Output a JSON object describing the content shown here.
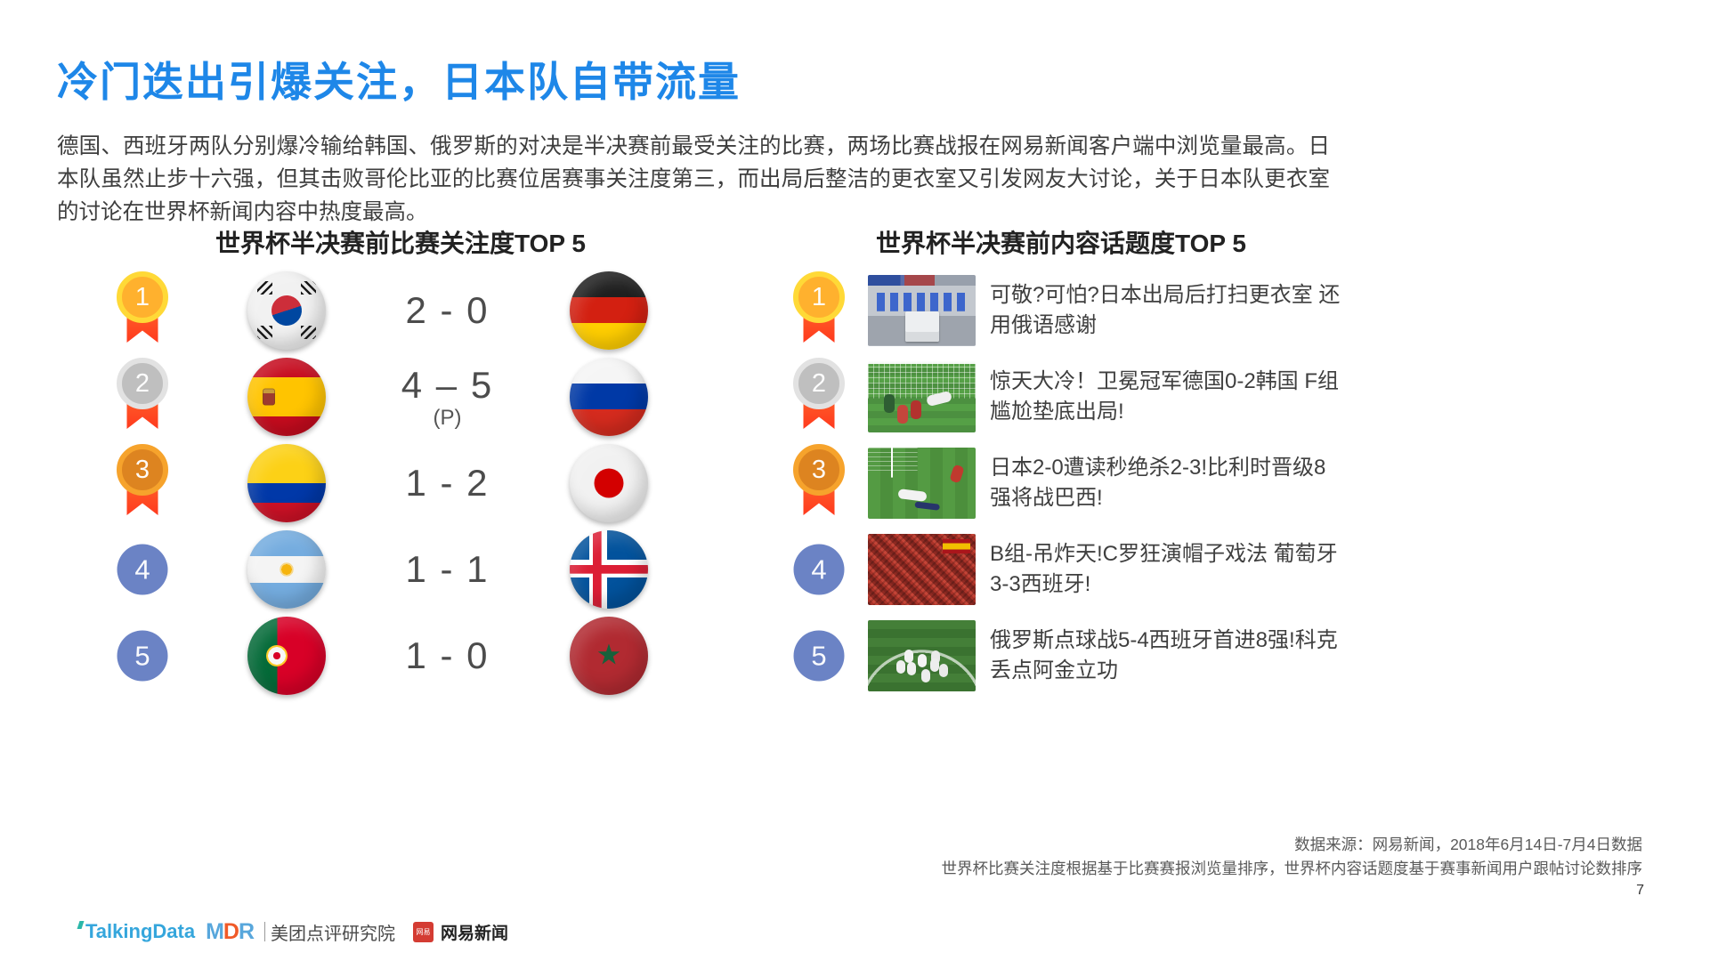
{
  "page": {
    "title": "冷门迭出引爆关注，日本队自带流量",
    "paragraph": "德国、西班牙两队分别爆冷输给韩国、俄罗斯的对决是半决赛前最受关注的比赛，两场比赛战报在网易新闻客户端中浏览量最高。日本队虽然止步十六强，但其击败哥伦比亚的比赛位居赛事关注度第三，而出局后整洁的更衣室又引发网友大讨论，关于日本队更衣室的讨论在世界杯新闻内容中热度最高。",
    "page_number": "7"
  },
  "left_panel": {
    "heading": "世界杯半决赛前比赛关注度TOP 5",
    "rows": [
      {
        "rank": "1",
        "team_left": "south-korea",
        "score": "2 - 0",
        "score_note": "",
        "team_right": "germany"
      },
      {
        "rank": "2",
        "team_left": "spain",
        "score": "4 – 5",
        "score_note": "(P)",
        "team_right": "russia"
      },
      {
        "rank": "3",
        "team_left": "colombia",
        "score": "1 - 2",
        "score_note": "",
        "team_right": "japan"
      },
      {
        "rank": "4",
        "team_left": "argentina",
        "score": "1 - 1",
        "score_note": "",
        "team_right": "iceland"
      },
      {
        "rank": "5",
        "team_left": "portugal",
        "score": "1 - 0",
        "score_note": "",
        "team_right": "morocco"
      }
    ]
  },
  "right_panel": {
    "heading": "世界杯半决赛前内容话题度TOP 5",
    "rows": [
      {
        "rank": "1",
        "thumbnail": "locker-room",
        "text": "可敬?可怕?日本出局后打扫更衣室 还用俄语感谢"
      },
      {
        "rank": "2",
        "thumbnail": "goal-upset",
        "text": "惊天大冷！卫冕冠军德国0-2韩国 F组尴尬垫底出局!"
      },
      {
        "rank": "3",
        "thumbnail": "last-minute-goal",
        "text": "日本2-0遭读秒绝杀2-3!比利时晋级8强将战巴西!"
      },
      {
        "rank": "4",
        "thumbnail": "red-crowd",
        "text": "B组-吊炸天!C罗狂演帽子戏法 葡萄牙3-3西班牙!"
      },
      {
        "rank": "5",
        "thumbnail": "team-celebration",
        "text": "俄罗斯点球战5-4西班牙首进8强!科克丢点阿金立功"
      }
    ]
  },
  "footer": {
    "source_line1": "数据来源：网易新闻，2018年6月14日-7月4日数据",
    "source_line2": "世界杯比赛关注度根据基于比赛赛报浏览量排序，世界杯内容话题度基于赛事新闻用户跟帖讨论数排序",
    "logos": {
      "talkingdata": "TalkingData",
      "mdr_m": "M",
      "mdr_d": "D",
      "mdr_r": "R",
      "meituan": "美团点评研究院",
      "netease_badge": "网易",
      "netease": "网易新闻"
    }
  },
  "colors": {
    "title_blue": "#1E87E8",
    "medal_gold": "#FFB12E",
    "medal_silver": "#BFBFBF",
    "medal_bronze": "#DD8420",
    "rank_blue": "#6B83C5",
    "ribbon_red": "#FF4A20",
    "netease_red": "#D43C33",
    "talkingdata_blue": "#35A6DC",
    "meituan_orange": "#F05A28"
  }
}
